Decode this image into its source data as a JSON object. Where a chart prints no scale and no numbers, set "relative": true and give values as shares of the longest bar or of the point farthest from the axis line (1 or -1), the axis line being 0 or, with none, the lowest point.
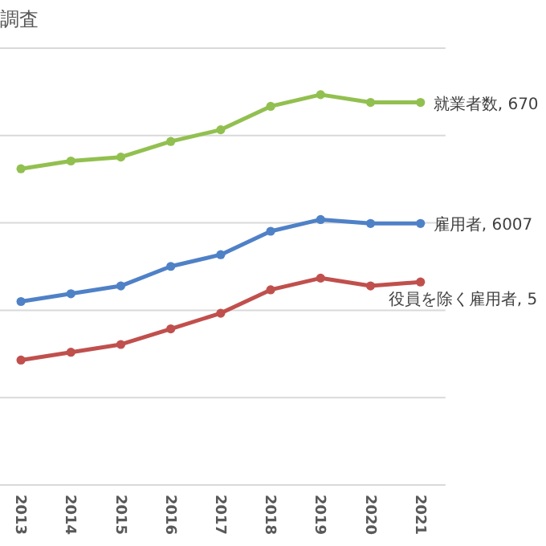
{
  "chart_data": {
    "type": "line",
    "title": "調査",
    "relative": true,
    "grid": "y",
    "marker": "circle",
    "categories": [
      "2013",
      "2014",
      "2015",
      "2016",
      "2017",
      "2018",
      "2019",
      "2020",
      "2021"
    ],
    "series": [
      {
        "color": "#92c050",
        "values": [
          0.81,
          0.83,
          0.84,
          0.88,
          0.91,
          0.97,
          1,
          0.98,
          0.98
        ]
      },
      {
        "color": "#4f81c7",
        "values": [
          0.47,
          0.49,
          0.51,
          0.56,
          0.59,
          0.65,
          0.68,
          0.67,
          0.67
        ]
      },
      {
        "color": "#c0504d",
        "values": [
          0.32,
          0.34,
          0.36,
          0.4,
          0.44,
          0.5,
          0.53,
          0.51,
          0.52
        ]
      }
    ],
    "annotations": [
      "就業者数, 670",
      "雇用者, 6007",
      "役員を除く雇用者, 5"
    ]
  }
}
